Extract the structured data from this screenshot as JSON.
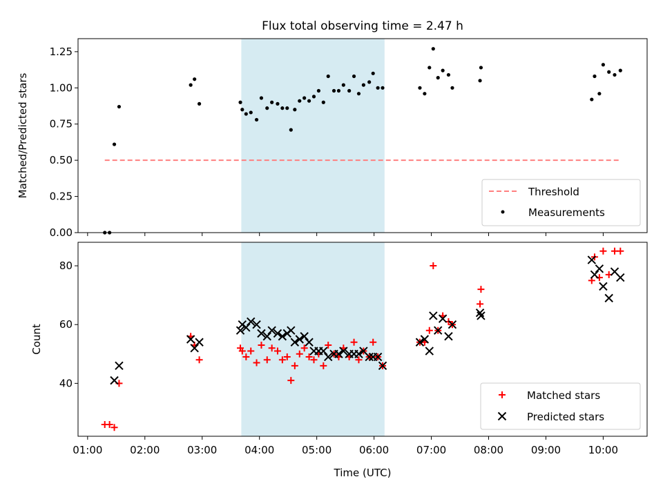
{
  "title": "Flux total observing time = 2.47 h",
  "colors": {
    "threshold": "#ff7f7f",
    "measurement": "#000000",
    "matched": "#ff0000",
    "predicted": "#000000",
    "span": "#add8e6"
  },
  "chart_data": [
    {
      "type": "scatter",
      "ylabel": "Matched/Predicted stars",
      "xlim": [
        "00:50",
        "10:46"
      ],
      "ylim": [
        0,
        1.34
      ],
      "ytick_labels": [
        "0.00",
        "0.25",
        "0.50",
        "0.75",
        "1.00",
        "1.25"
      ],
      "grid": false,
      "legend_position": "lower-right",
      "shaded_span": [
        "03:41",
        "06:11"
      ],
      "series": [
        {
          "name": "Threshold",
          "kind": "dashed-line",
          "x": [
            "01:18",
            "10:18"
          ],
          "y": [
            0.5,
            0.5
          ]
        },
        {
          "name": "Measurements",
          "kind": "points",
          "x": [
            "01:18",
            "01:23",
            "01:28",
            "01:33",
            "02:48",
            "02:52",
            "02:57",
            "03:40",
            "03:42",
            "03:46",
            "03:51",
            "03:57",
            "04:02",
            "04:08",
            "04:13",
            "04:19",
            "04:24",
            "04:29",
            "04:33",
            "04:37",
            "04:42",
            "04:47",
            "04:52",
            "04:57",
            "05:02",
            "05:07",
            "05:12",
            "05:18",
            "05:23",
            "05:28",
            "05:34",
            "05:39",
            "05:44",
            "05:49",
            "05:55",
            "05:59",
            "06:04",
            "06:09",
            "06:48",
            "06:53",
            "06:58",
            "07:02",
            "07:07",
            "07:12",
            "07:18",
            "07:22",
            "07:51",
            "07:52",
            "09:48",
            "09:51",
            "09:56",
            "10:00",
            "10:06",
            "10:12",
            "10:18"
          ],
          "y": [
            0.0,
            0.0,
            0.61,
            0.87,
            1.02,
            1.06,
            0.89,
            0.9,
            0.85,
            0.82,
            0.83,
            0.78,
            0.93,
            0.86,
            0.9,
            0.89,
            0.86,
            0.86,
            0.71,
            0.85,
            0.91,
            0.93,
            0.91,
            0.94,
            0.98,
            0.9,
            1.08,
            0.98,
            0.98,
            1.02,
            0.98,
            1.08,
            0.96,
            1.02,
            1.04,
            1.1,
            1.0,
            1.0,
            1.0,
            0.96,
            1.14,
            1.27,
            1.07,
            1.12,
            1.09,
            1.0,
            1.05,
            1.14,
            0.92,
            1.08,
            0.96,
            1.16,
            1.11,
            1.09,
            1.12
          ]
        }
      ]
    },
    {
      "type": "scatter",
      "xlabel": "Time (UTC)",
      "ylabel": "Count",
      "xlim": [
        "00:50",
        "10:46"
      ],
      "ylim": [
        22,
        88
      ],
      "ytick_labels": [
        "40",
        "60",
        "80"
      ],
      "xtick_labels": [
        "01:00",
        "02:00",
        "03:00",
        "04:00",
        "05:00",
        "06:00",
        "07:00",
        "08:00",
        "09:00",
        "10:00"
      ],
      "grid": false,
      "legend_position": "lower-right",
      "shaded_span": [
        "03:41",
        "06:11"
      ],
      "series": [
        {
          "name": "Matched stars",
          "kind": "plus",
          "x": [
            "01:18",
            "01:23",
            "01:28",
            "01:33",
            "02:48",
            "02:52",
            "02:57",
            "03:40",
            "03:42",
            "03:46",
            "03:51",
            "03:57",
            "04:02",
            "04:08",
            "04:13",
            "04:19",
            "04:24",
            "04:29",
            "04:33",
            "04:37",
            "04:42",
            "04:47",
            "04:52",
            "04:57",
            "05:02",
            "05:07",
            "05:12",
            "05:18",
            "05:23",
            "05:28",
            "05:34",
            "05:39",
            "05:44",
            "05:49",
            "05:55",
            "05:59",
            "06:04",
            "06:09",
            "06:48",
            "06:53",
            "06:58",
            "07:02",
            "07:07",
            "07:12",
            "07:18",
            "07:22",
            "07:51",
            "07:52",
            "09:48",
            "09:51",
            "09:56",
            "10:00",
            "10:06",
            "10:12",
            "10:18"
          ],
          "y": [
            26,
            26,
            25,
            40,
            56,
            53,
            48,
            52,
            51,
            49,
            51,
            47,
            53,
            48,
            52,
            51,
            48,
            49,
            41,
            46,
            50,
            52,
            49,
            48,
            50,
            46,
            53,
            50,
            49,
            52,
            49,
            54,
            48,
            51,
            49,
            54,
            49,
            46,
            54,
            54,
            58,
            80,
            58,
            63,
            61,
            60,
            67,
            72,
            75,
            83,
            76,
            85,
            77,
            85,
            85
          ]
        },
        {
          "name": "Predicted stars",
          "kind": "x",
          "x": [
            "01:28",
            "01:33",
            "02:48",
            "02:52",
            "02:57",
            "03:40",
            "03:42",
            "03:46",
            "03:51",
            "03:57",
            "04:02",
            "04:08",
            "04:13",
            "04:19",
            "04:24",
            "04:29",
            "04:33",
            "04:37",
            "04:42",
            "04:47",
            "04:52",
            "04:57",
            "05:02",
            "05:07",
            "05:12",
            "05:18",
            "05:23",
            "05:28",
            "05:34",
            "05:39",
            "05:44",
            "05:49",
            "05:55",
            "05:59",
            "06:04",
            "06:09",
            "06:48",
            "06:53",
            "06:58",
            "07:02",
            "07:07",
            "07:12",
            "07:18",
            "07:22",
            "07:51",
            "07:52",
            "09:48",
            "09:51",
            "09:56",
            "10:00",
            "10:06",
            "10:12",
            "10:18"
          ],
          "y": [
            41,
            46,
            55,
            52,
            54,
            58,
            60,
            59,
            61,
            60,
            57,
            56,
            58,
            57,
            56,
            57,
            58,
            54,
            55,
            56,
            54,
            51,
            51,
            51,
            49,
            50,
            50,
            51,
            50,
            50,
            50,
            51,
            49,
            49,
            49,
            46,
            54,
            55,
            51,
            63,
            58,
            62,
            56,
            60,
            64,
            63,
            82,
            77,
            79,
            73,
            69,
            78,
            76
          ]
        }
      ]
    }
  ]
}
